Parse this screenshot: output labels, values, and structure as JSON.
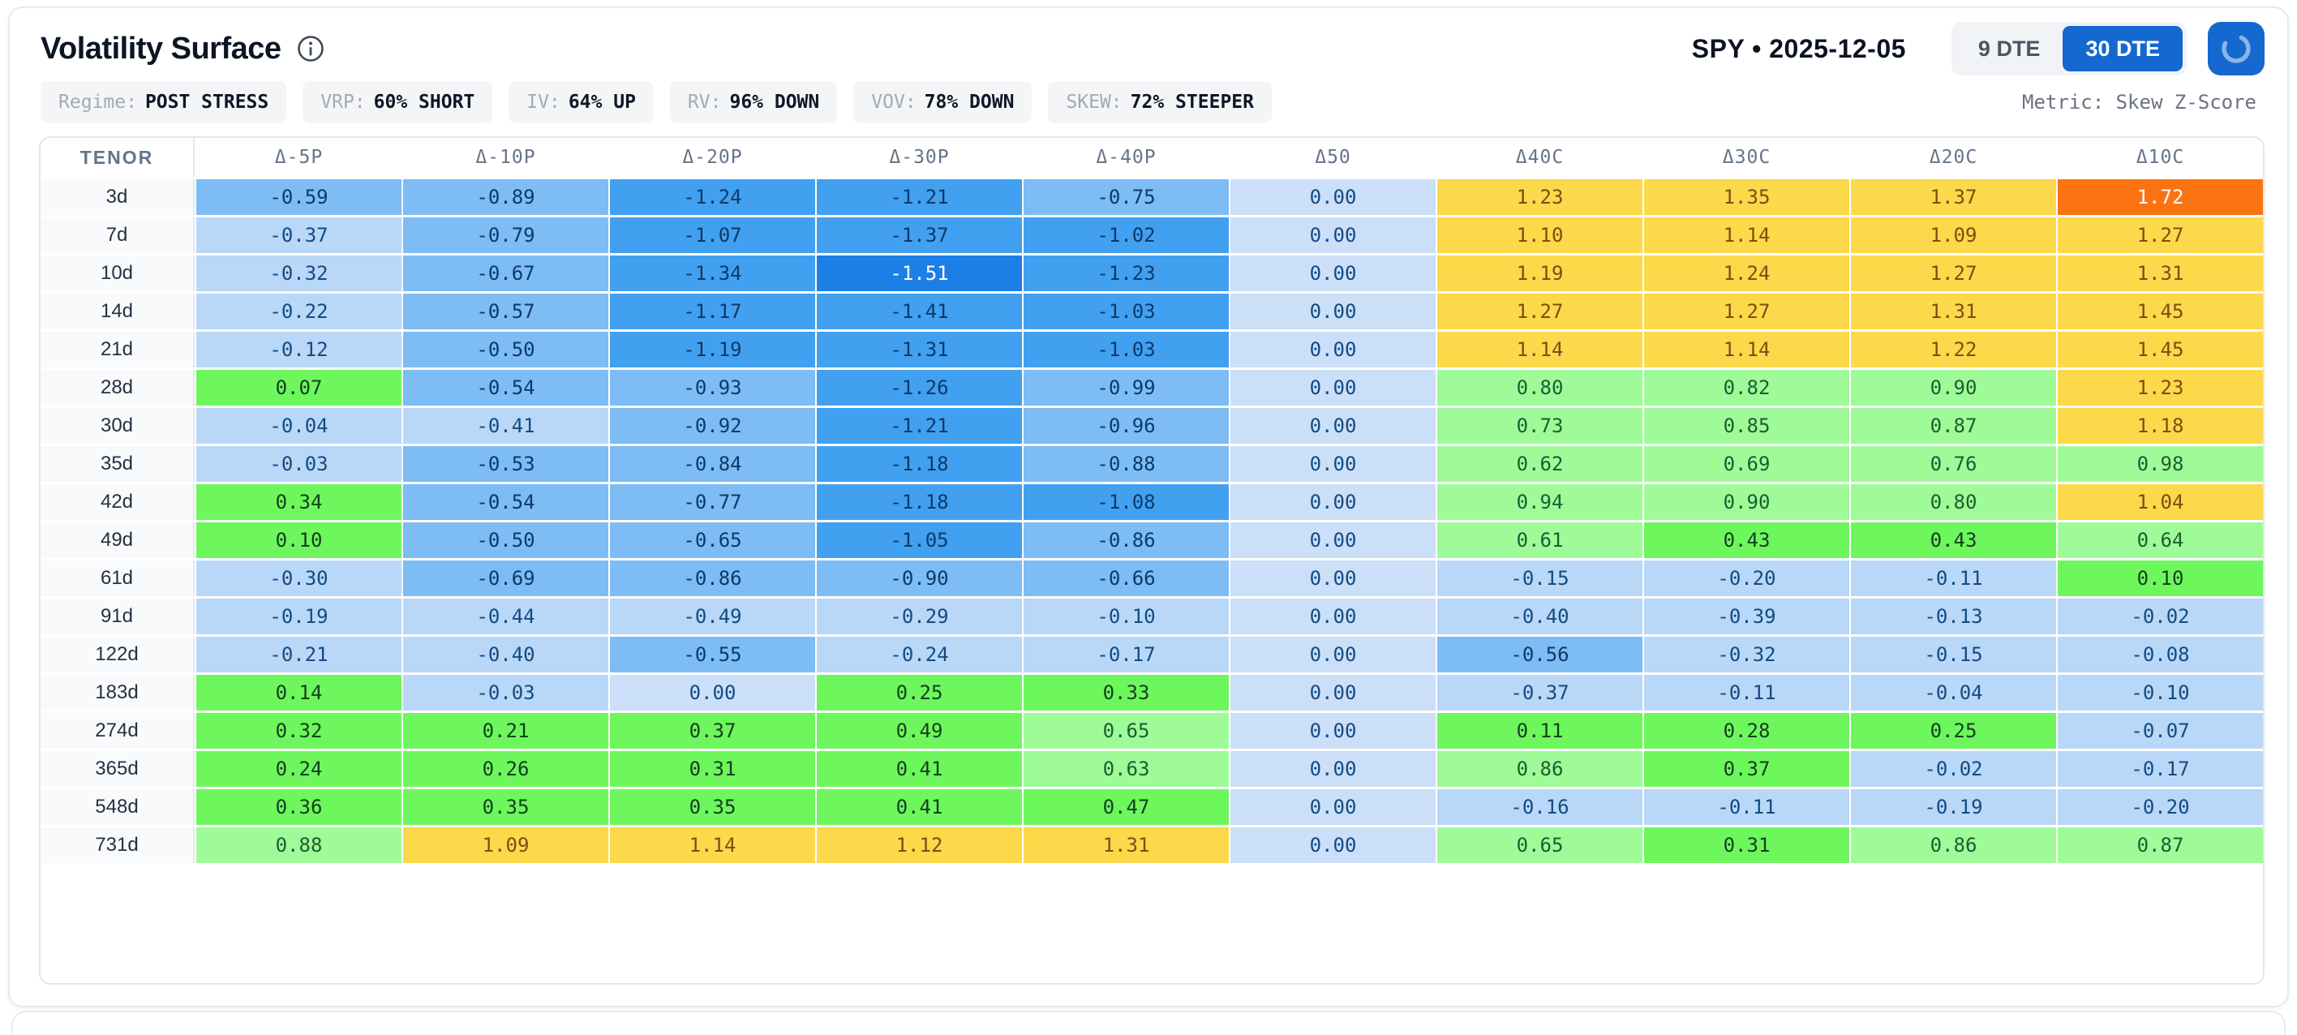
{
  "page": {
    "title": "Volatility Surface",
    "ticker": "SPY • 2025-12-05",
    "metric_note": "Metric: Skew Z-Score"
  },
  "controls": {
    "dte_options": [
      {
        "label": "9 DTE",
        "active": false
      },
      {
        "label": "30 DTE",
        "active": true
      }
    ],
    "refresh_icon": "spinner-arc-icon",
    "info_icon": "info-circle-icon",
    "accent_blue": "#1468d0"
  },
  "badges": [
    {
      "label": "Regime:",
      "value": "POST STRESS"
    },
    {
      "label": "VRP:",
      "value": "60% SHORT"
    },
    {
      "label": "IV:",
      "value": "64% UP"
    },
    {
      "label": "RV:",
      "value": "96% DOWN"
    },
    {
      "label": "VOV:",
      "value": "78% DOWN"
    },
    {
      "label": "SKEW:",
      "value": "72% STEEPER"
    }
  ],
  "chart_data": {
    "type": "heatmap",
    "title": "Volatility Surface (Skew Z-Score)",
    "columns": [
      "TENOR",
      "Δ-5P",
      "Δ-10P",
      "Δ-20P",
      "Δ-30P",
      "Δ-40P",
      "Δ50",
      "Δ40C",
      "Δ30C",
      "Δ20C",
      "Δ10C"
    ],
    "rows": [
      "3d",
      "7d",
      "10d",
      "14d",
      "21d",
      "28d",
      "30d",
      "35d",
      "42d",
      "49d",
      "61d",
      "91d",
      "122d",
      "183d",
      "274d",
      "365d",
      "548d",
      "731d"
    ],
    "values": [
      [
        "-0.59",
        "-0.89",
        "-1.24",
        "-1.21",
        "-0.75",
        "0.00",
        "1.23",
        "1.35",
        "1.37",
        "1.72"
      ],
      [
        "-0.37",
        "-0.79",
        "-1.07",
        "-1.37",
        "-1.02",
        "0.00",
        "1.10",
        "1.14",
        "1.09",
        "1.27"
      ],
      [
        "-0.32",
        "-0.67",
        "-1.34",
        "-1.51",
        "-1.23",
        "0.00",
        "1.19",
        "1.24",
        "1.27",
        "1.31"
      ],
      [
        "-0.22",
        "-0.57",
        "-1.17",
        "-1.41",
        "-1.03",
        "0.00",
        "1.27",
        "1.27",
        "1.31",
        "1.45"
      ],
      [
        "-0.12",
        "-0.50",
        "-1.19",
        "-1.31",
        "-1.03",
        "0.00",
        "1.14",
        "1.14",
        "1.22",
        "1.45"
      ],
      [
        "0.07",
        "-0.54",
        "-0.93",
        "-1.26",
        "-0.99",
        "0.00",
        "0.80",
        "0.82",
        "0.90",
        "1.23"
      ],
      [
        "-0.04",
        "-0.41",
        "-0.92",
        "-1.21",
        "-0.96",
        "0.00",
        "0.73",
        "0.85",
        "0.87",
        "1.18"
      ],
      [
        "-0.03",
        "-0.53",
        "-0.84",
        "-1.18",
        "-0.88",
        "0.00",
        "0.62",
        "0.69",
        "0.76",
        "0.98"
      ],
      [
        "0.34",
        "-0.54",
        "-0.77",
        "-1.18",
        "-1.08",
        "0.00",
        "0.94",
        "0.90",
        "0.80",
        "1.04"
      ],
      [
        "0.10",
        "-0.50",
        "-0.65",
        "-1.05",
        "-0.86",
        "0.00",
        "0.61",
        "0.43",
        "0.43",
        "0.64"
      ],
      [
        "-0.30",
        "-0.69",
        "-0.86",
        "-0.90",
        "-0.66",
        "0.00",
        "-0.15",
        "-0.20",
        "-0.11",
        "0.10"
      ],
      [
        "-0.19",
        "-0.44",
        "-0.49",
        "-0.29",
        "-0.10",
        "0.00",
        "-0.40",
        "-0.39",
        "-0.13",
        "-0.02"
      ],
      [
        "-0.21",
        "-0.40",
        "-0.55",
        "-0.24",
        "-0.17",
        "0.00",
        "-0.56",
        "-0.32",
        "-0.15",
        "-0.08"
      ],
      [
        "0.14",
        "-0.03",
        "0.00",
        "0.25",
        "0.33",
        "0.00",
        "-0.37",
        "-0.11",
        "-0.04",
        "-0.10"
      ],
      [
        "0.32",
        "0.21",
        "0.37",
        "0.49",
        "0.65",
        "0.00",
        "0.11",
        "0.28",
        "0.25",
        "-0.07"
      ],
      [
        "0.24",
        "0.26",
        "0.31",
        "0.41",
        "0.63",
        "0.00",
        "0.86",
        "0.37",
        "-0.02",
        "-0.17"
      ],
      [
        "0.36",
        "0.35",
        "0.35",
        "0.41",
        "0.47",
        "0.00",
        "-0.16",
        "-0.11",
        "-0.19",
        "-0.20"
      ],
      [
        "0.88",
        "1.09",
        "1.14",
        "1.12",
        "1.31",
        "0.00",
        "0.65",
        "0.31",
        "0.86",
        "0.87"
      ]
    ],
    "color_stops": [
      {
        "lte": -1.5,
        "bg": "#1c7fe6",
        "fg": "#ffffff"
      },
      {
        "lte": -1.0,
        "bg": "#42a0f0",
        "fg": "#0c3a69"
      },
      {
        "lte": -0.5,
        "bg": "#7dbcf4",
        "fg": "#0c3a69"
      },
      {
        "lte": -0.005,
        "bg": "#b9d7f7",
        "fg": "#134b82"
      },
      {
        "lte": 0.005,
        "bg": "#cbdff9",
        "fg": "#134b82"
      },
      {
        "lte": 0.495,
        "bg": "#6df75c",
        "fg": "#123f1e"
      },
      {
        "lte": 0.995,
        "bg": "#9ffb97",
        "fg": "#1e5c31"
      },
      {
        "lte": 1.495,
        "bg": "#fcd84b",
        "fg": "#7b4e10"
      },
      {
        "lte": 999,
        "bg": "#fb7311",
        "fg": "#ffffff"
      }
    ],
    "legend_position": "none",
    "grid": true
  }
}
